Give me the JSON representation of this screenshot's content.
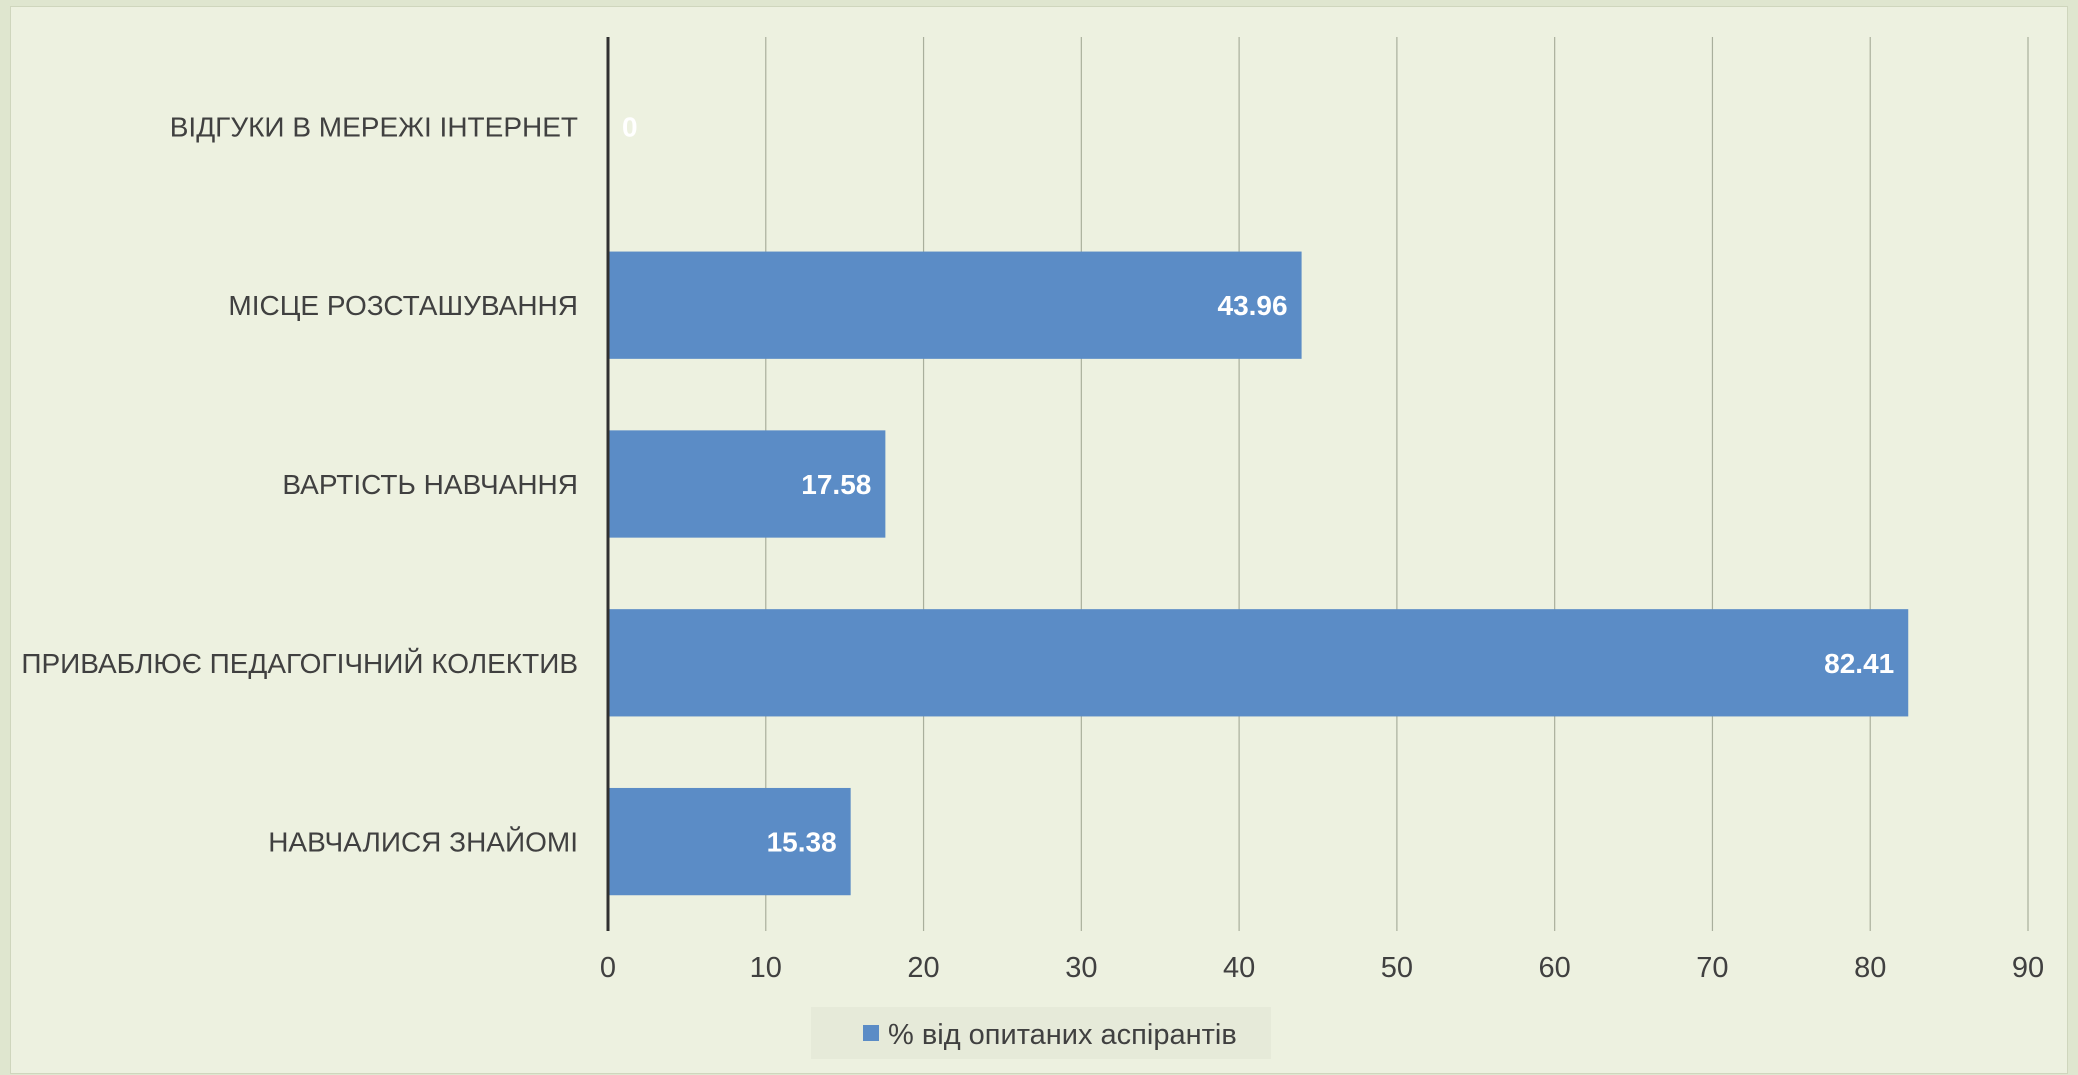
{
  "colors": {
    "bar": "#5b8cc6",
    "gridline": "#a9af9c",
    "axis": "#303030",
    "background": "#edf1e0",
    "legend_bg": "#e6ead9"
  },
  "chart_data": {
    "type": "bar",
    "orientation": "horizontal",
    "categories": [
      "ВІДГУКИ В МЕРЕЖІ ІНТЕРНЕТ",
      "МІСЦЕ РОЗСТАШУВАННЯ",
      "ВАРТІСТЬ НАВЧАННЯ",
      "ПРИВАБЛЮЄ ПЕДАГОГІЧНИЙ  КОЛЕКТИВ",
      "НАВЧАЛИСЯ ЗНАЙОМІ"
    ],
    "series": [
      {
        "name": "% від опитаних аспірантів",
        "values": [
          0,
          43.96,
          17.58,
          82.41,
          15.38
        ]
      }
    ],
    "value_labels": [
      "0",
      "43.96",
      "17.58",
      "82.41",
      "15.38"
    ],
    "xlim": [
      0,
      90
    ],
    "xticks": [
      "0",
      "10",
      "20",
      "30",
      "40",
      "50",
      "60",
      "70",
      "80",
      "90"
    ],
    "title": "",
    "xlabel": "",
    "ylabel": "",
    "grid": "vertical",
    "legend_position": "bottom"
  }
}
